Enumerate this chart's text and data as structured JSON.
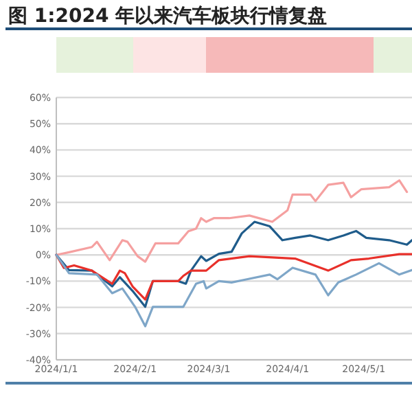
{
  "chart_data": {
    "type": "line",
    "title": "图 1:2024 年以来汽车板块行情复盘",
    "xlim": [
      "2024-01-01",
      "2024-05-20"
    ],
    "xticks": [
      {
        "value": "2024-01-01",
        "label": "2024/1/1"
      },
      {
        "value": "2024-02-01",
        "label": "2024/2/1"
      },
      {
        "value": "2024-03-01",
        "label": "2024/3/1"
      },
      {
        "value": "2024-04-01",
        "label": "2024/4/1"
      },
      {
        "value": "2024-05-01",
        "label": "2024/5/1"
      }
    ],
    "ylim": [
      -40,
      60
    ],
    "yticks": [
      {
        "value": -40,
        "label": "-40%"
      },
      {
        "value": -30,
        "label": "-30%"
      },
      {
        "value": -20,
        "label": "-20%"
      },
      {
        "value": -10,
        "label": "-10%"
      },
      {
        "value": 0,
        "label": "0%"
      },
      {
        "value": 10,
        "label": "10%"
      },
      {
        "value": 20,
        "label": "20%"
      },
      {
        "value": 30,
        "label": "30%"
      },
      {
        "value": 40,
        "label": "40%"
      },
      {
        "value": 50,
        "label": "50%"
      },
      {
        "value": 60,
        "label": "60%"
      }
    ],
    "grid": "y",
    "marker": "none",
    "line_style": "solid",
    "series": [
      {
        "color": "#f5a0a0",
        "x": [
          "2024-01-01",
          "2024-01-06",
          "2024-01-15",
          "2024-01-17",
          "2024-01-22",
          "2024-01-27",
          "2024-01-29",
          "2024-02-02",
          "2024-02-05",
          "2024-02-09",
          "2024-02-18",
          "2024-02-22",
          "2024-02-25",
          "2024-02-27",
          "2024-02-29",
          "2024-03-03",
          "2024-03-09",
          "2024-03-17",
          "2024-03-26",
          "2024-04-01",
          "2024-04-03",
          "2024-04-10",
          "2024-04-12",
          "2024-04-17",
          "2024-04-23",
          "2024-04-26",
          "2024-04-30",
          "2024-05-11",
          "2024-05-15",
          "2024-05-18"
        ],
        "values": [
          0,
          1,
          3,
          5,
          -2,
          5.6,
          5,
          -0.5,
          -2.6,
          4.4,
          4.4,
          9,
          10,
          14,
          12.6,
          14,
          14,
          15,
          12.6,
          17,
          23,
          23,
          20.5,
          26.7,
          27.5,
          22,
          25,
          25.8,
          28.4,
          24
        ]
      },
      {
        "color": "#1f5c8b",
        "x": [
          "2024-01-01",
          "2024-01-06",
          "2024-01-15",
          "2024-01-23",
          "2024-01-26",
          "2024-01-31",
          "2024-02-05",
          "2024-02-08",
          "2024-02-18",
          "2024-02-21",
          "2024-02-23",
          "2024-02-27",
          "2024-02-29",
          "2024-03-05",
          "2024-03-10",
          "2024-03-14",
          "2024-03-19",
          "2024-03-25",
          "2024-03-30",
          "2024-04-04",
          "2024-04-10",
          "2024-04-17",
          "2024-04-23",
          "2024-04-28",
          "2024-05-02",
          "2024-05-11",
          "2024-05-18",
          "2024-05-20"
        ],
        "values": [
          0,
          -5.8,
          -6,
          -12,
          -8.5,
          -13.7,
          -19.8,
          -10,
          -10,
          -11,
          -6,
          -0.5,
          -2.3,
          0.4,
          1.2,
          8.2,
          12.6,
          10.9,
          5.6,
          6.5,
          7.4,
          5.6,
          7.4,
          9.1,
          6.5,
          5.6,
          3.9,
          5.6
        ]
      },
      {
        "color": "#e8302a",
        "x": [
          "2024-01-01",
          "2024-01-04",
          "2024-01-08",
          "2024-01-15",
          "2024-01-23",
          "2024-01-26",
          "2024-01-28",
          "2024-01-31",
          "2024-02-05",
          "2024-02-08",
          "2024-02-18",
          "2024-02-20",
          "2024-02-23",
          "2024-02-29",
          "2024-03-05",
          "2024-03-17",
          "2024-04-04",
          "2024-04-17",
          "2024-04-26",
          "2024-05-03",
          "2024-05-15",
          "2024-05-20"
        ],
        "values": [
          0,
          -5,
          -4,
          -6,
          -11,
          -6,
          -7,
          -12,
          -17,
          -10,
          -10,
          -8,
          -6,
          -6,
          -2,
          -0.5,
          -1.4,
          -6,
          -2,
          -1.4,
          0.3,
          0.3
        ]
      },
      {
        "color": "#7ea6c8",
        "x": [
          "2024-01-01",
          "2024-01-06",
          "2024-01-17",
          "2024-01-23",
          "2024-01-27",
          "2024-02-01",
          "2024-02-05",
          "2024-02-08",
          "2024-02-20",
          "2024-02-25",
          "2024-02-28",
          "2024-02-29",
          "2024-03-05",
          "2024-03-10",
          "2024-03-16",
          "2024-03-25",
          "2024-03-28",
          "2024-04-03",
          "2024-04-12",
          "2024-04-17",
          "2024-04-21",
          "2024-04-28",
          "2024-05-07",
          "2024-05-15",
          "2024-05-20"
        ],
        "values": [
          0,
          -7,
          -7.5,
          -14.6,
          -12.8,
          -19.8,
          -27.2,
          -19.8,
          -19.8,
          -11,
          -10,
          -12.8,
          -10,
          -10.5,
          -9.3,
          -7.5,
          -9.3,
          -4.9,
          -7.5,
          -15.4,
          -10.5,
          -7.5,
          -3.2,
          -7.5,
          -5.8
        ]
      }
    ]
  }
}
